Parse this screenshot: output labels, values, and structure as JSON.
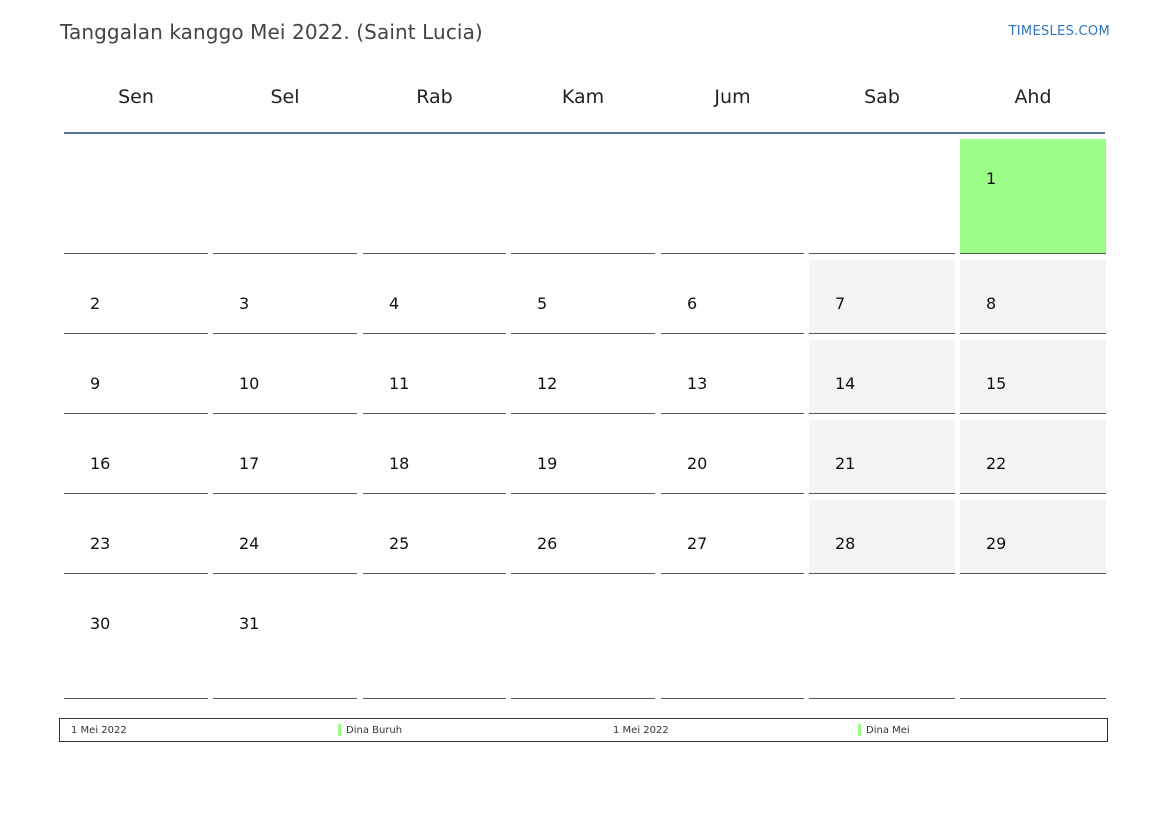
{
  "title": "Tanggalan kanggo Mei 2022. (Saint Lucia)",
  "brand": "TIMESLES.COM",
  "colors": {
    "header_rule": "#5a7298",
    "holiday": "#9cfc88",
    "weekend": "#f4f4f4",
    "brand": "#2e76c4"
  },
  "weekdays": [
    "Sen",
    "Sel",
    "Rab",
    "Kam",
    "Jum",
    "Sab",
    "Ahd"
  ],
  "weeks": [
    [
      "",
      "",
      "",
      "",
      "",
      "",
      "1"
    ],
    [
      "2",
      "3",
      "4",
      "5",
      "6",
      "7",
      "8"
    ],
    [
      "9",
      "10",
      "11",
      "12",
      "13",
      "14",
      "15"
    ],
    [
      "16",
      "17",
      "18",
      "19",
      "20",
      "21",
      "22"
    ],
    [
      "23",
      "24",
      "25",
      "26",
      "27",
      "28",
      "29"
    ],
    [
      "30",
      "31",
      "",
      "",
      "",
      "",
      ""
    ]
  ],
  "holiday_days": [
    "1"
  ],
  "legend": [
    {
      "date": "1 Mei 2022",
      "name": "Dina Buruh"
    },
    {
      "date": "1 Mei 2022",
      "name": "Dina Mei"
    }
  ]
}
